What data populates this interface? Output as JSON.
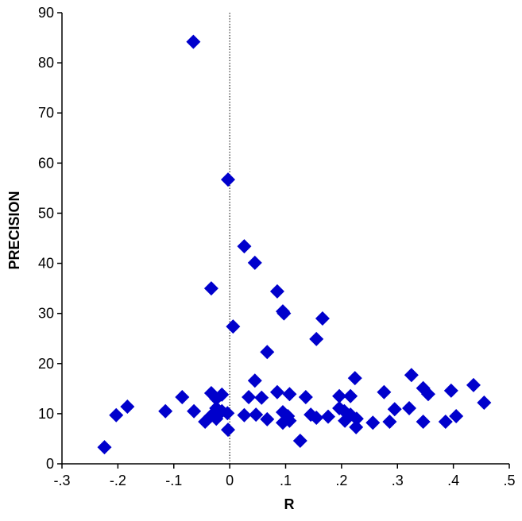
{
  "chart_data": {
    "type": "scatter",
    "x_label": "R",
    "y_label": "PRECISION",
    "x": [
      -0.065,
      -0.003,
      0.026,
      0.045,
      -0.033,
      0.085,
      0.095,
      0.097,
      0.166,
      0.006,
      0.155,
      0.067,
      0.325,
      0.224,
      0.045,
      0.436,
      0.346,
      0.396,
      0.276,
      0.085,
      -0.033,
      0.355,
      -0.014,
      -0.085,
      0.034,
      0.057,
      0.107,
      0.136,
      0.196,
      0.216,
      -0.024,
      0.455,
      -0.183,
      0.295,
      0.321,
      0.196,
      0.205,
      -0.115,
      -0.064,
      -0.203,
      -0.014,
      -0.024,
      -0.004,
      0.026,
      0.047,
      0.095,
      0.104,
      0.145,
      0.155,
      0.176,
      0.216,
      0.227,
      0.405,
      -0.034,
      -0.024,
      -0.044,
      0.067,
      0.095,
      0.206,
      0.256,
      0.286,
      0.346,
      0.386,
      0.226,
      -0.003,
      0.126,
      -0.224,
      0.107
    ],
    "values": [
      84.2,
      56.7,
      43.4,
      40.1,
      35.0,
      34.4,
      30.4,
      30.0,
      29.0,
      27.4,
      24.9,
      22.3,
      17.7,
      17.1,
      16.6,
      15.7,
      15.1,
      14.6,
      14.3,
      14.3,
      14.1,
      13.9,
      13.8,
      13.3,
      13.3,
      13.2,
      13.9,
      13.3,
      13.5,
      13.5,
      13.0,
      12.2,
      11.4,
      10.9,
      11.1,
      11.1,
      10.5,
      10.5,
      10.5,
      9.7,
      10.5,
      11.1,
      10.1,
      9.7,
      9.8,
      10.3,
      9.5,
      9.8,
      9.2,
      9.4,
      9.8,
      9.0,
      9.5,
      9.5,
      9.0,
      8.4,
      8.9,
      8.2,
      8.6,
      8.2,
      8.4,
      8.4,
      8.4,
      7.3,
      6.8,
      4.6,
      3.3,
      8.6
    ],
    "color": "#0000cc",
    "xlim": [
      -0.3,
      0.5
    ],
    "xticks": [
      {
        "value": -0.3,
        "label": "-.3"
      },
      {
        "value": -0.2,
        "label": "-.2"
      },
      {
        "value": -0.1,
        "label": "-.1"
      },
      0,
      {
        "value": 0.1,
        "label": ".1"
      },
      {
        "value": 0.2,
        "label": ".2"
      },
      {
        "value": 0.3,
        "label": ".3"
      },
      {
        "value": 0.4,
        "label": ".4"
      },
      {
        "value": 0.5,
        "label": ".5"
      }
    ],
    "ylim": [
      0,
      90
    ],
    "yticks": [
      0,
      10,
      20,
      30,
      40,
      50,
      60,
      70,
      80,
      90
    ],
    "vline": 0
  }
}
